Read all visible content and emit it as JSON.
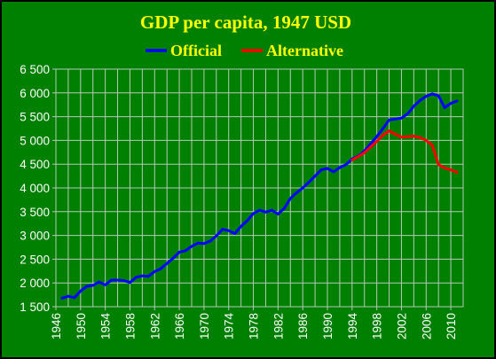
{
  "colors": {
    "background": "#008000",
    "plot_area": "#008000",
    "grid": "#b8c8b8",
    "text": "#ffffff",
    "title": "#ffff00",
    "official": "#0000ff",
    "alternative": "#ff0000"
  },
  "chart_data": {
    "type": "line",
    "title": "GDP per capita, 1947 USD",
    "xlabel": "",
    "ylabel": "",
    "xlim": [
      1946,
      2012
    ],
    "ylim": [
      1500,
      6500
    ],
    "x_ticks": [
      1946,
      1950,
      1954,
      1958,
      1962,
      1966,
      1970,
      1974,
      1978,
      1982,
      1986,
      1990,
      1994,
      1998,
      2002,
      2006,
      2010
    ],
    "x_tick_labels": [
      "1946",
      "1950",
      "1954",
      "1958",
      "1962",
      "1966",
      "1970",
      "1974",
      "1978",
      "1982",
      "1986",
      "1990",
      "1994",
      "1998",
      "2002",
      "2006",
      "2010"
    ],
    "y_ticks": [
      1500,
      2000,
      2500,
      3000,
      3500,
      4000,
      4500,
      5000,
      5500,
      6000,
      6500
    ],
    "y_tick_labels": [
      "1 500",
      "2 000",
      "2 500",
      "3 000",
      "3 500",
      "4 000",
      "4 500",
      "5 000",
      "5 500",
      "6 000",
      "6 500"
    ],
    "grid": true,
    "legend_position": "top",
    "series": [
      {
        "name": "Official",
        "color": "#0000ff",
        "points": [
          [
            1947,
            1680
          ],
          [
            1948,
            1720
          ],
          [
            1949,
            1690
          ],
          [
            1950,
            1830
          ],
          [
            1951,
            1930
          ],
          [
            1952,
            1950
          ],
          [
            1953,
            2020
          ],
          [
            1954,
            1960
          ],
          [
            1955,
            2060
          ],
          [
            1956,
            2060
          ],
          [
            1957,
            2050
          ],
          [
            1958,
            2010
          ],
          [
            1959,
            2120
          ],
          [
            1960,
            2150
          ],
          [
            1961,
            2140
          ],
          [
            1962,
            2240
          ],
          [
            1963,
            2300
          ],
          [
            1964,
            2410
          ],
          [
            1965,
            2520
          ],
          [
            1966,
            2650
          ],
          [
            1967,
            2680
          ],
          [
            1968,
            2770
          ],
          [
            1969,
            2840
          ],
          [
            1970,
            2830
          ],
          [
            1971,
            2880
          ],
          [
            1972,
            2990
          ],
          [
            1973,
            3130
          ],
          [
            1974,
            3100
          ],
          [
            1975,
            3040
          ],
          [
            1976,
            3190
          ],
          [
            1977,
            3310
          ],
          [
            1978,
            3460
          ],
          [
            1979,
            3530
          ],
          [
            1980,
            3490
          ],
          [
            1981,
            3530
          ],
          [
            1982,
            3450
          ],
          [
            1983,
            3570
          ],
          [
            1984,
            3780
          ],
          [
            1985,
            3900
          ],
          [
            1986,
            4000
          ],
          [
            1987,
            4120
          ],
          [
            1988,
            4250
          ],
          [
            1989,
            4380
          ],
          [
            1990,
            4410
          ],
          [
            1991,
            4340
          ],
          [
            1992,
            4430
          ],
          [
            1993,
            4490
          ],
          [
            1994,
            4610
          ],
          [
            1995,
            4670
          ],
          [
            1996,
            4780
          ],
          [
            1997,
            4930
          ],
          [
            1998,
            5080
          ],
          [
            1999,
            5250
          ],
          [
            2000,
            5430
          ],
          [
            2001,
            5450
          ],
          [
            2002,
            5470
          ],
          [
            2003,
            5560
          ],
          [
            2004,
            5720
          ],
          [
            2005,
            5840
          ],
          [
            2006,
            5930
          ],
          [
            2007,
            5980
          ],
          [
            2008,
            5940
          ],
          [
            2009,
            5690
          ],
          [
            2010,
            5780
          ],
          [
            2011,
            5830
          ]
        ]
      },
      {
        "name": "Alternative",
        "color": "#ff0000",
        "points": [
          [
            1994,
            4590
          ],
          [
            1995,
            4660
          ],
          [
            1996,
            4740
          ],
          [
            1997,
            4860
          ],
          [
            1998,
            4980
          ],
          [
            1999,
            5110
          ],
          [
            2000,
            5200
          ],
          [
            2001,
            5130
          ],
          [
            2002,
            5070
          ],
          [
            2003,
            5080
          ],
          [
            2004,
            5090
          ],
          [
            2005,
            5060
          ],
          [
            2006,
            5000
          ],
          [
            2007,
            4900
          ],
          [
            2008,
            4490
          ],
          [
            2009,
            4420
          ],
          [
            2010,
            4380
          ],
          [
            2011,
            4330
          ]
        ]
      }
    ]
  }
}
